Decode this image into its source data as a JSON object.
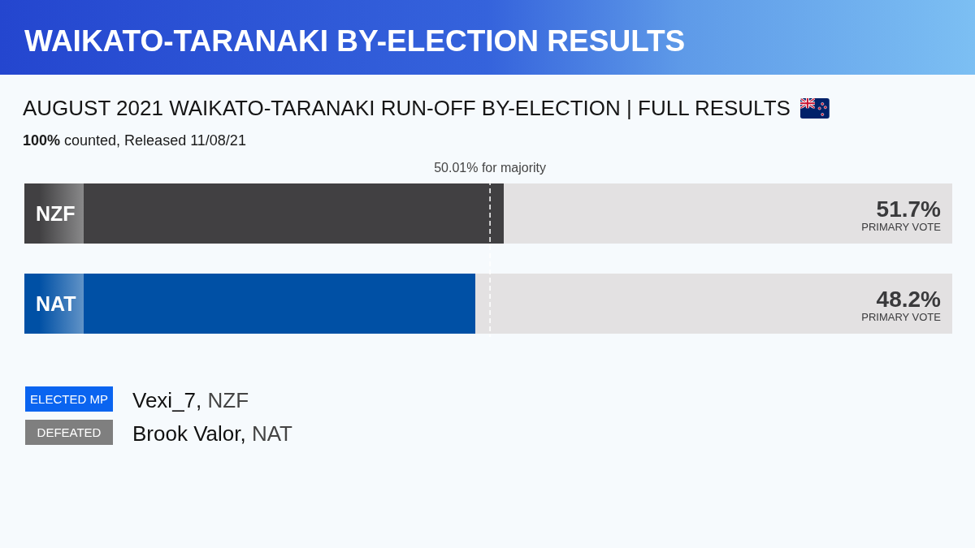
{
  "chart_data": {
    "type": "bar",
    "orientation": "horizontal",
    "title": "WAIKATO-TARANAKI BY-ELECTION RESULTS",
    "subtitle": "AUGUST 2021 WAIKATO-TARANAKI RUN-OFF BY-ELECTION | FULL RESULTS",
    "categories": [
      "NZF",
      "NAT"
    ],
    "values": [
      51.7,
      48.2
    ],
    "colors": [
      "#414042",
      "#0050a5"
    ],
    "value_labels": [
      "51.7%",
      "48.2%"
    ],
    "tick_labels": "y",
    "ref_lines": [
      {
        "axis": "x",
        "value": 50.01,
        "label": "50.01% for majority",
        "color": "#ffffff",
        "line_style": "dashed"
      }
    ],
    "annotations": [
      "100% counted, Released 11/08/21",
      "PRIMARY VOTE",
      "PRIMARY VOTE",
      "ELECTED MP",
      "Vexi_7, NZF",
      "DEFEATED",
      "Brook Valor, NAT"
    ]
  }
}
